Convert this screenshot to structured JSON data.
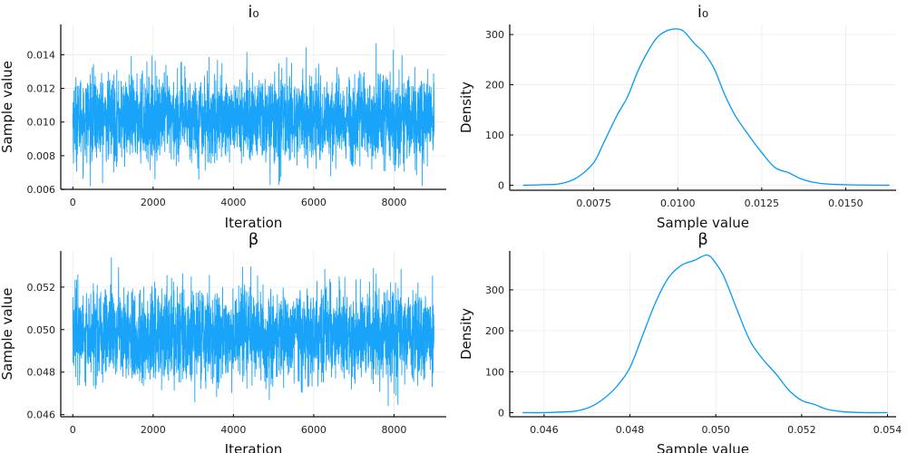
{
  "colors": {
    "series": "#009af9",
    "axis": "#333333",
    "grid": "#ebebeb"
  },
  "chart_data": [
    {
      "type": "line",
      "title": "i₀",
      "xlabel": "Iteration",
      "ylabel": "Sample value",
      "xlim": [
        -300,
        9300
      ],
      "ylim": [
        0.006,
        0.0158
      ],
      "xticks": [
        0,
        2000,
        4000,
        6000,
        8000
      ],
      "xtick_labels": [
        "0",
        "2000",
        "4000",
        "6000",
        "8000"
      ],
      "yticks": [
        0.006,
        0.008,
        0.01,
        0.012,
        0.014
      ],
      "ytick_labels": [
        "0.006",
        "0.008",
        "0.010",
        "0.012",
        "0.014"
      ],
      "grid": true,
      "series": [
        {
          "name": "trace",
          "n": 9000,
          "mean": 0.0102,
          "sd": 0.00125,
          "min": 0.0062,
          "max": 0.0155
        }
      ]
    },
    {
      "type": "line",
      "title": "i₀",
      "xlabel": "Sample value",
      "ylabel": "Density",
      "xlim": [
        0.005,
        0.0165
      ],
      "ylim": [
        -10,
        320
      ],
      "xticks": [
        0.0075,
        0.01,
        0.0125,
        0.015
      ],
      "xtick_labels": [
        "0.0075",
        "0.0100",
        "0.0125",
        "0.0150"
      ],
      "yticks": [
        0,
        100,
        200,
        300
      ],
      "ytick_labels": [
        "0",
        "100",
        "200",
        "300"
      ],
      "grid": true,
      "series": [
        {
          "name": "density",
          "x": [
            0.0054,
            0.006,
            0.0065,
            0.007,
            0.0075,
            0.0078,
            0.0082,
            0.0085,
            0.0088,
            0.0091,
            0.0094,
            0.0097,
            0.01,
            0.0102,
            0.0105,
            0.0108,
            0.0111,
            0.0114,
            0.0117,
            0.012,
            0.0125,
            0.0129,
            0.0133,
            0.0137,
            0.0142,
            0.015,
            0.0163
          ],
          "y": [
            0,
            1,
            3,
            15,
            45,
            85,
            140,
            175,
            225,
            265,
            295,
            308,
            311,
            305,
            282,
            262,
            230,
            180,
            140,
            110,
            65,
            35,
            25,
            12,
            4,
            1,
            0
          ]
        }
      ]
    },
    {
      "type": "line",
      "title": "β",
      "xlabel": "Iteration",
      "ylabel": "Sample value",
      "xlim": [
        -300,
        9300
      ],
      "ylim": [
        0.0459,
        0.0537
      ],
      "xticks": [
        0,
        2000,
        4000,
        6000,
        8000
      ],
      "xtick_labels": [
        "0",
        "2000",
        "4000",
        "6000",
        "8000"
      ],
      "yticks": [
        0.046,
        0.048,
        0.05,
        0.052
      ],
      "ytick_labels": [
        "0.046",
        "0.048",
        "0.050",
        "0.052"
      ],
      "grid": true,
      "series": [
        {
          "name": "trace",
          "n": 9000,
          "mean": 0.0497,
          "sd": 0.00105,
          "min": 0.0461,
          "max": 0.0534
        }
      ]
    },
    {
      "type": "line",
      "title": "β",
      "xlabel": "Sample value",
      "ylabel": "Density",
      "xlim": [
        0.0452,
        0.0542
      ],
      "ylim": [
        -10,
        395
      ],
      "xticks": [
        0.046,
        0.048,
        0.05,
        0.052,
        0.054
      ],
      "xtick_labels": [
        "0.046",
        "0.048",
        "0.050",
        "0.052",
        "0.054"
      ],
      "yticks": [
        0,
        100,
        200,
        300
      ],
      "ytick_labels": [
        "0",
        "100",
        "200",
        "300"
      ],
      "grid": true,
      "series": [
        {
          "name": "density",
          "x": [
            0.0455,
            0.046,
            0.0465,
            0.0468,
            0.0471,
            0.0474,
            0.0477,
            0.048,
            0.0483,
            0.0486,
            0.0489,
            0.0492,
            0.0495,
            0.0498,
            0.05,
            0.0502,
            0.0505,
            0.0508,
            0.0511,
            0.0514,
            0.0517,
            0.052,
            0.0523,
            0.0526,
            0.053,
            0.0535,
            0.054
          ],
          "y": [
            0,
            0,
            2,
            5,
            15,
            35,
            65,
            110,
            190,
            270,
            330,
            360,
            372,
            385,
            365,
            330,
            250,
            175,
            130,
            95,
            55,
            30,
            20,
            8,
            2,
            0,
            0
          ]
        }
      ]
    }
  ]
}
